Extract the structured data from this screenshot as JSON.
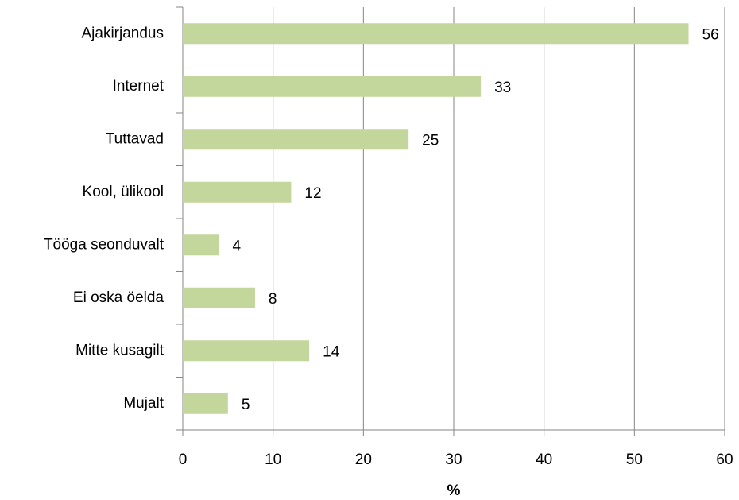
{
  "chart_data": {
    "type": "bar",
    "orientation": "horizontal",
    "x_label": "%",
    "categories": [
      "Ajakirjandus",
      "Internet",
      "Tuttavad",
      "Kool, ülikool",
      "Tööga seonduvalt",
      "Ei oska öelda",
      "Mitte kusagilt",
      "Mujalt"
    ],
    "values": [
      56,
      33,
      25,
      12,
      4,
      8,
      14,
      5
    ],
    "color": "#c3d69b",
    "xlim": [
      0,
      60
    ],
    "xticks": [
      0,
      10,
      20,
      30,
      40,
      50,
      60
    ],
    "grid": true
  }
}
